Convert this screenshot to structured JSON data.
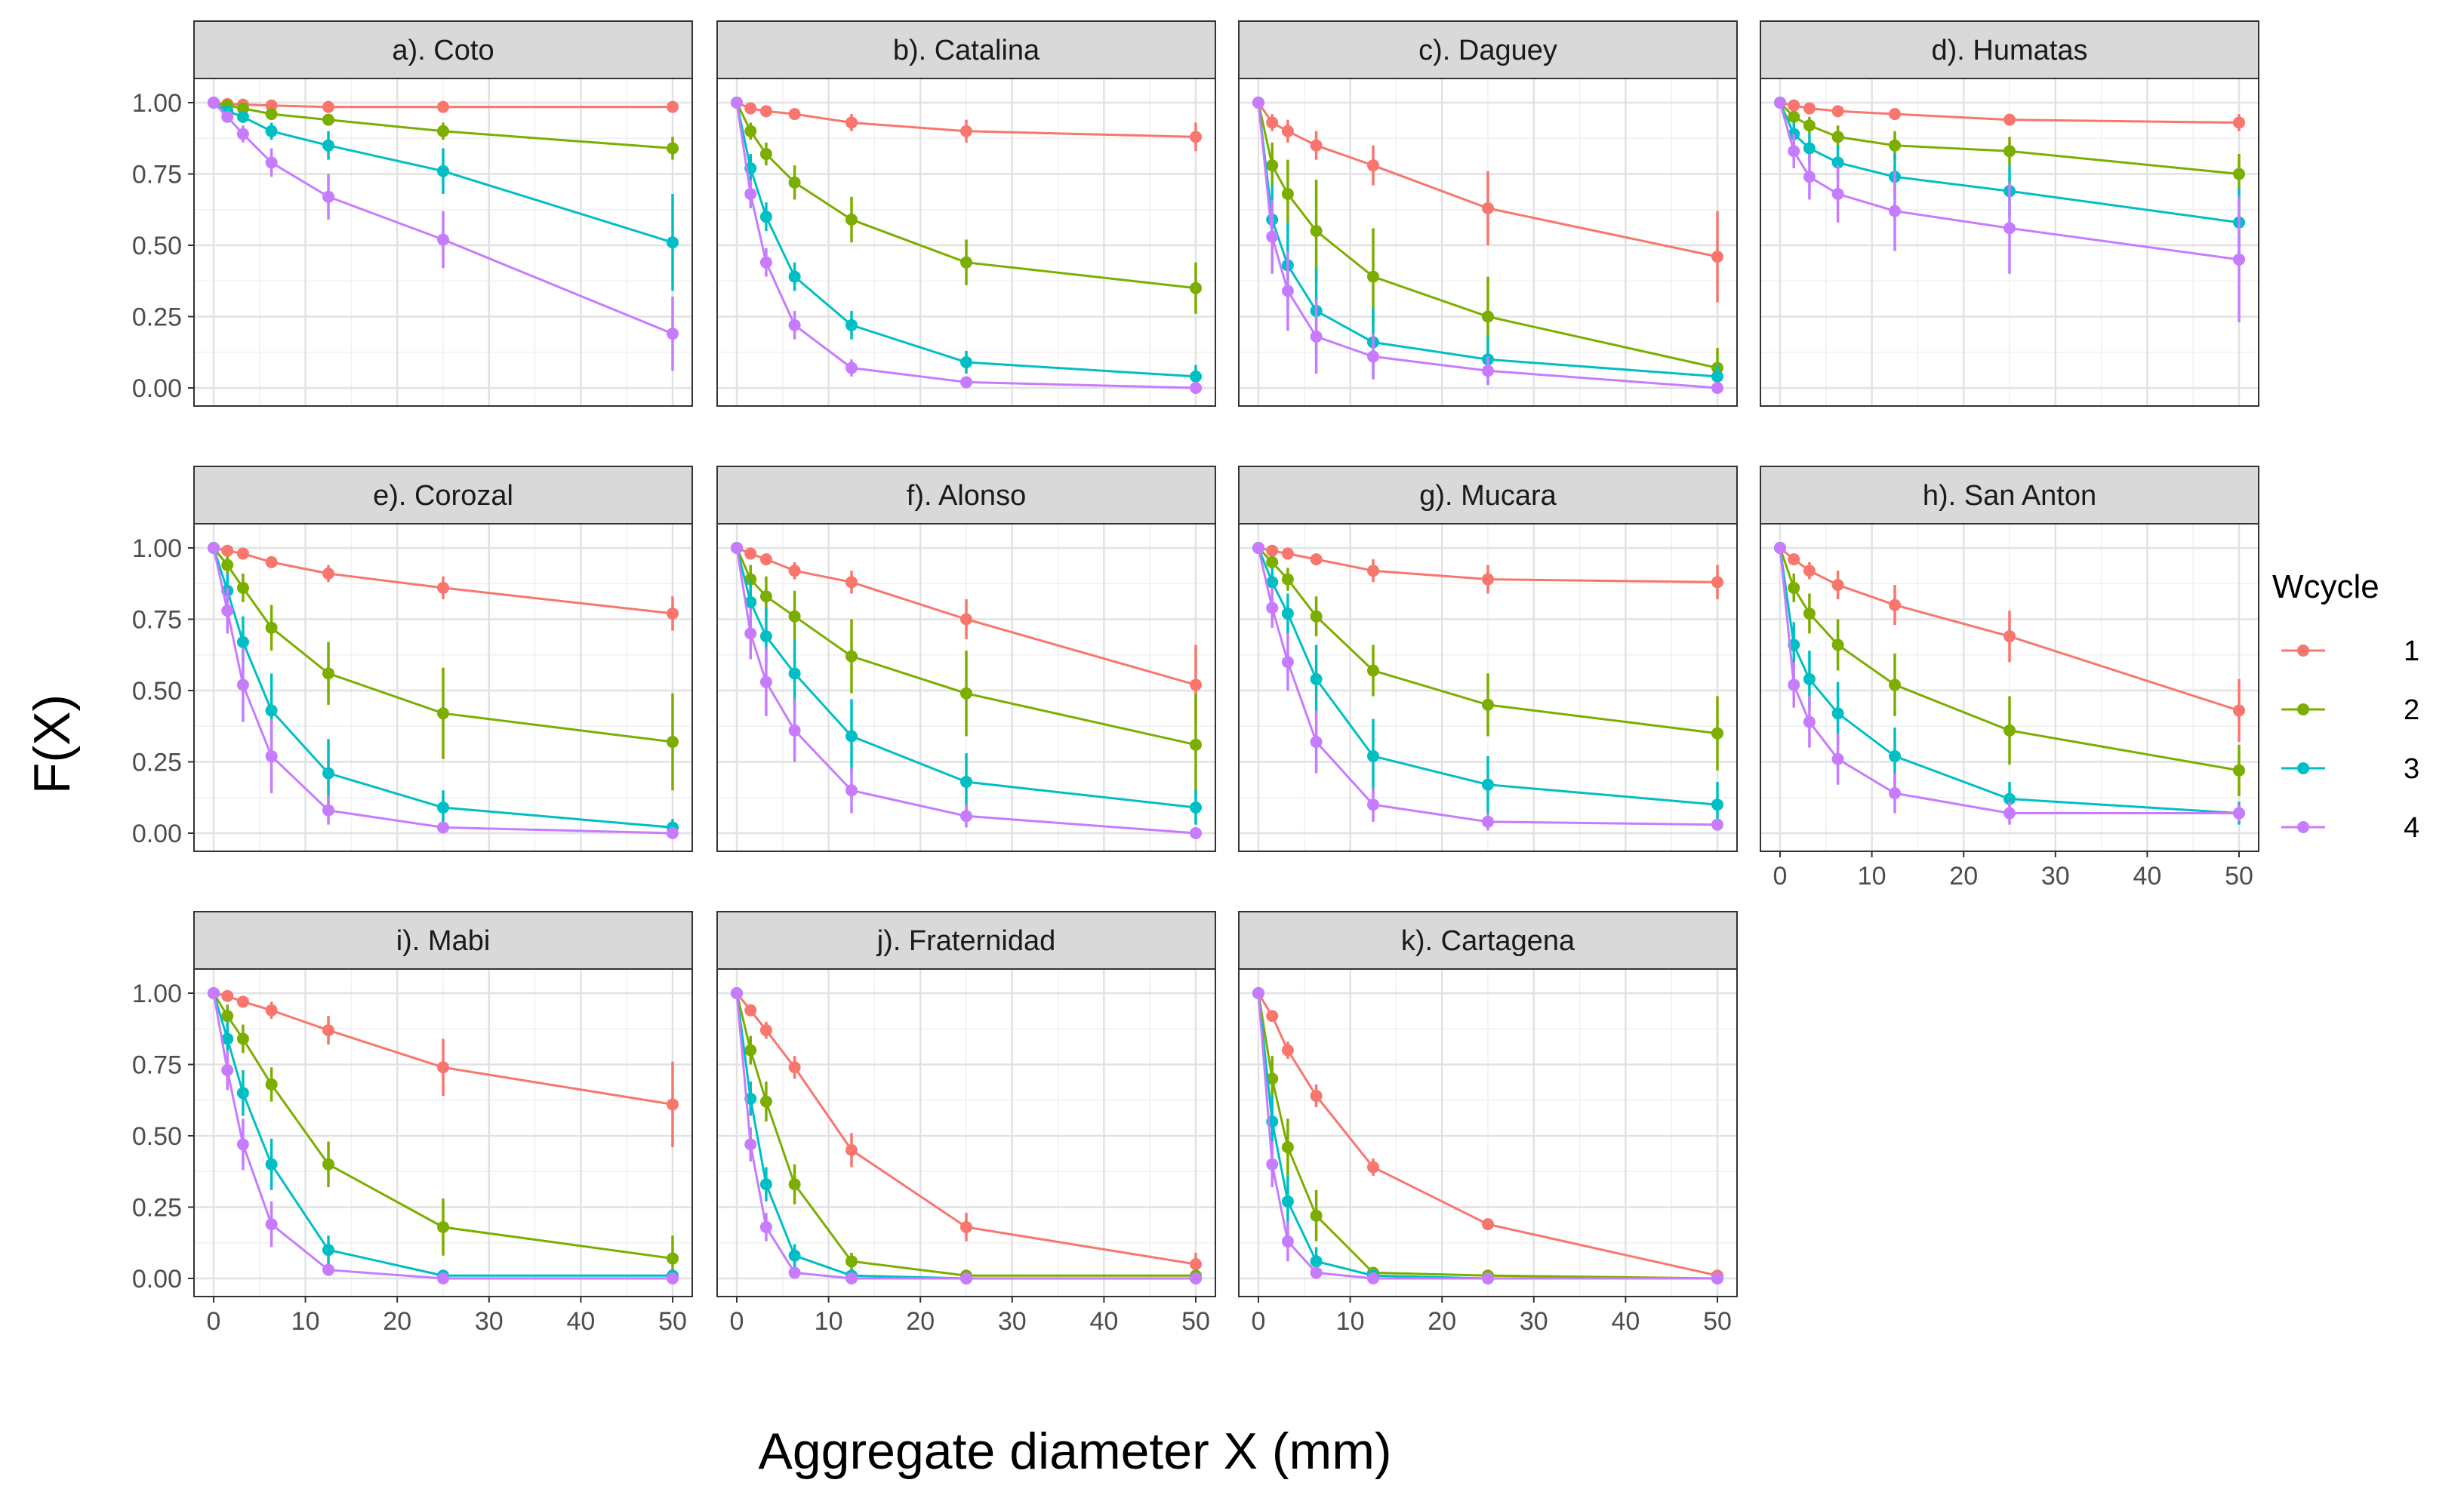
{
  "chart_data": {
    "type": "line",
    "xlabel": "Aggregate diameter X (mm)",
    "ylabel": "F(X)",
    "x_ticks": [
      "0",
      "10",
      "20",
      "30",
      "40",
      "50"
    ],
    "y_ticks": [
      "0.00",
      "0.25",
      "0.50",
      "0.75",
      "1.00"
    ],
    "xlim": [
      0,
      50
    ],
    "ylim": [
      0,
      1
    ],
    "grid": true,
    "legend": {
      "title": "Wcycle",
      "position": "right",
      "entries": [
        {
          "label": "1",
          "color": "#F8766D"
        },
        {
          "label": "2",
          "color": "#7CAE00"
        },
        {
          "label": "3",
          "color": "#00BFC4"
        },
        {
          "label": "4",
          "color": "#C77CFF"
        }
      ]
    },
    "x": [
      0,
      1.5,
      3.2,
      6.3,
      12.5,
      25,
      50
    ],
    "panels": [
      {
        "title": "a). Coto",
        "series": [
          {
            "name": "1",
            "values": [
              1.0,
              0.995,
              0.993,
              0.99,
              0.985,
              0.985,
              0.985
            ],
            "err": [
              0,
              0.005,
              0.005,
              0.01,
              0.01,
              0.01,
              0.01
            ]
          },
          {
            "name": "2",
            "values": [
              1.0,
              0.99,
              0.98,
              0.96,
              0.94,
              0.9,
              0.84
            ],
            "err": [
              0,
              0.01,
              0.01,
              0.015,
              0.02,
              0.03,
              0.04
            ]
          },
          {
            "name": "3",
            "values": [
              1.0,
              0.97,
              0.95,
              0.9,
              0.85,
              0.76,
              0.51
            ],
            "err": [
              0,
              0.02,
              0.02,
              0.03,
              0.05,
              0.08,
              0.17
            ]
          },
          {
            "name": "4",
            "values": [
              1.0,
              0.95,
              0.89,
              0.79,
              0.67,
              0.52,
              0.19
            ],
            "err": [
              0,
              0.02,
              0.03,
              0.05,
              0.08,
              0.1,
              0.13
            ]
          }
        ]
      },
      {
        "title": "b). Catalina",
        "series": [
          {
            "name": "1",
            "values": [
              1.0,
              0.98,
              0.97,
              0.96,
              0.93,
              0.9,
              0.88
            ],
            "err": [
              0,
              0.01,
              0.01,
              0.015,
              0.03,
              0.04,
              0.05
            ]
          },
          {
            "name": "2",
            "values": [
              1.0,
              0.9,
              0.82,
              0.72,
              0.59,
              0.44,
              0.35
            ],
            "err": [
              0,
              0.03,
              0.04,
              0.06,
              0.08,
              0.08,
              0.09
            ]
          },
          {
            "name": "3",
            "values": [
              1.0,
              0.77,
              0.6,
              0.39,
              0.22,
              0.09,
              0.04
            ],
            "err": [
              0,
              0.05,
              0.05,
              0.05,
              0.05,
              0.04,
              0.04
            ]
          },
          {
            "name": "4",
            "values": [
              1.0,
              0.68,
              0.44,
              0.22,
              0.07,
              0.02,
              0.0
            ],
            "err": [
              0,
              0.05,
              0.05,
              0.05,
              0.03,
              0.02,
              0.01
            ]
          }
        ]
      },
      {
        "title": "c). Daguey",
        "series": [
          {
            "name": "1",
            "values": [
              1.0,
              0.93,
              0.9,
              0.85,
              0.78,
              0.63,
              0.46
            ],
            "err": [
              0,
              0.03,
              0.04,
              0.05,
              0.07,
              0.13,
              0.16
            ]
          },
          {
            "name": "2",
            "values": [
              1.0,
              0.78,
              0.68,
              0.55,
              0.39,
              0.25,
              0.07
            ],
            "err": [
              0,
              0.08,
              0.12,
              0.18,
              0.17,
              0.14,
              0.07
            ]
          },
          {
            "name": "3",
            "values": [
              1.0,
              0.59,
              0.43,
              0.27,
              0.16,
              0.1,
              0.04
            ],
            "err": [
              0,
              0.12,
              0.15,
              0.15,
              0.12,
              0.08,
              0.04
            ]
          },
          {
            "name": "4",
            "values": [
              1.0,
              0.53,
              0.34,
              0.18,
              0.11,
              0.06,
              0.0
            ],
            "err": [
              0,
              0.13,
              0.14,
              0.13,
              0.08,
              0.05,
              0.01
            ]
          }
        ]
      },
      {
        "title": "d). Humatas",
        "series": [
          {
            "name": "1",
            "values": [
              1.0,
              0.99,
              0.98,
              0.97,
              0.96,
              0.94,
              0.93
            ],
            "err": [
              0,
              0.01,
              0.01,
              0.015,
              0.02,
              0.02,
              0.03
            ]
          },
          {
            "name": "2",
            "values": [
              1.0,
              0.95,
              0.92,
              0.88,
              0.85,
              0.83,
              0.75
            ],
            "err": [
              0,
              0.02,
              0.03,
              0.04,
              0.05,
              0.05,
              0.07
            ]
          },
          {
            "name": "3",
            "values": [
              1.0,
              0.89,
              0.84,
              0.79,
              0.74,
              0.69,
              0.58
            ],
            "err": [
              0,
              0.04,
              0.05,
              0.06,
              0.08,
              0.09,
              0.12
            ]
          },
          {
            "name": "4",
            "values": [
              1.0,
              0.83,
              0.74,
              0.68,
              0.62,
              0.56,
              0.45
            ],
            "err": [
              0,
              0.06,
              0.08,
              0.1,
              0.14,
              0.16,
              0.22
            ]
          }
        ]
      },
      {
        "title": "e). Corozal",
        "series": [
          {
            "name": "1",
            "values": [
              1.0,
              0.99,
              0.98,
              0.95,
              0.91,
              0.86,
              0.77
            ],
            "err": [
              0,
              0.005,
              0.01,
              0.02,
              0.03,
              0.04,
              0.06
            ]
          },
          {
            "name": "2",
            "values": [
              1.0,
              0.94,
              0.86,
              0.72,
              0.56,
              0.42,
              0.32
            ],
            "err": [
              0,
              0.03,
              0.05,
              0.08,
              0.11,
              0.16,
              0.17
            ]
          },
          {
            "name": "3",
            "values": [
              1.0,
              0.85,
              0.67,
              0.43,
              0.21,
              0.09,
              0.02
            ],
            "err": [
              0,
              0.06,
              0.09,
              0.13,
              0.12,
              0.06,
              0.03
            ]
          },
          {
            "name": "4",
            "values": [
              1.0,
              0.78,
              0.52,
              0.27,
              0.08,
              0.02,
              0.0
            ],
            "err": [
              0,
              0.08,
              0.13,
              0.13,
              0.05,
              0.02,
              0.01
            ]
          }
        ]
      },
      {
        "title": "f). Alonso",
        "series": [
          {
            "name": "1",
            "values": [
              1.0,
              0.98,
              0.96,
              0.92,
              0.88,
              0.75,
              0.52
            ],
            "err": [
              0,
              0.01,
              0.02,
              0.03,
              0.04,
              0.07,
              0.14
            ]
          },
          {
            "name": "2",
            "values": [
              1.0,
              0.89,
              0.83,
              0.76,
              0.62,
              0.49,
              0.31
            ],
            "err": [
              0,
              0.05,
              0.07,
              0.09,
              0.13,
              0.15,
              0.18
            ]
          },
          {
            "name": "3",
            "values": [
              1.0,
              0.81,
              0.69,
              0.56,
              0.34,
              0.18,
              0.09
            ],
            "err": [
              0,
              0.08,
              0.1,
              0.12,
              0.13,
              0.1,
              0.06
            ]
          },
          {
            "name": "4",
            "values": [
              1.0,
              0.7,
              0.53,
              0.36,
              0.15,
              0.06,
              0.0
            ],
            "err": [
              0,
              0.09,
              0.12,
              0.11,
              0.08,
              0.04,
              0.01
            ]
          }
        ]
      },
      {
        "title": "g). Mucara",
        "series": [
          {
            "name": "1",
            "values": [
              1.0,
              0.99,
              0.98,
              0.96,
              0.92,
              0.89,
              0.88
            ],
            "err": [
              0,
              0.01,
              0.01,
              0.02,
              0.04,
              0.05,
              0.06
            ]
          },
          {
            "name": "2",
            "values": [
              1.0,
              0.95,
              0.89,
              0.76,
              0.57,
              0.45,
              0.35
            ],
            "err": [
              0,
              0.02,
              0.04,
              0.07,
              0.09,
              0.11,
              0.13
            ]
          },
          {
            "name": "3",
            "values": [
              1.0,
              0.88,
              0.77,
              0.54,
              0.27,
              0.17,
              0.1
            ],
            "err": [
              0,
              0.05,
              0.07,
              0.12,
              0.13,
              0.1,
              0.08
            ]
          },
          {
            "name": "4",
            "values": [
              1.0,
              0.79,
              0.6,
              0.32,
              0.1,
              0.04,
              0.03
            ],
            "err": [
              0,
              0.07,
              0.1,
              0.11,
              0.06,
              0.03,
              0.02
            ]
          }
        ]
      },
      {
        "title": "h). San Anton",
        "series": [
          {
            "name": "1",
            "values": [
              1.0,
              0.96,
              0.92,
              0.87,
              0.8,
              0.69,
              0.43
            ],
            "err": [
              0,
              0.02,
              0.03,
              0.05,
              0.07,
              0.09,
              0.11
            ]
          },
          {
            "name": "2",
            "values": [
              1.0,
              0.86,
              0.77,
              0.66,
              0.52,
              0.36,
              0.22
            ],
            "err": [
              0,
              0.05,
              0.07,
              0.09,
              0.11,
              0.12,
              0.09
            ]
          },
          {
            "name": "3",
            "values": [
              1.0,
              0.66,
              0.54,
              0.42,
              0.27,
              0.12,
              0.07
            ],
            "err": [
              0,
              0.08,
              0.1,
              0.11,
              0.1,
              0.06,
              0.04
            ]
          },
          {
            "name": "4",
            "values": [
              1.0,
              0.52,
              0.39,
              0.26,
              0.14,
              0.07,
              0.07
            ],
            "err": [
              0,
              0.08,
              0.09,
              0.09,
              0.07,
              0.04,
              0.03
            ]
          }
        ]
      },
      {
        "title": "i). Mabi",
        "series": [
          {
            "name": "1",
            "values": [
              1.0,
              0.99,
              0.97,
              0.94,
              0.87,
              0.74,
              0.61
            ],
            "err": [
              0,
              0.01,
              0.02,
              0.03,
              0.05,
              0.1,
              0.15
            ]
          },
          {
            "name": "2",
            "values": [
              1.0,
              0.92,
              0.84,
              0.68,
              0.4,
              0.18,
              0.07
            ],
            "err": [
              0,
              0.04,
              0.05,
              0.06,
              0.08,
              0.1,
              0.08
            ]
          },
          {
            "name": "3",
            "values": [
              1.0,
              0.84,
              0.65,
              0.4,
              0.1,
              0.01,
              0.01
            ],
            "err": [
              0,
              0.06,
              0.08,
              0.09,
              0.05,
              0.01,
              0.0
            ]
          },
          {
            "name": "4",
            "values": [
              1.0,
              0.73,
              0.47,
              0.19,
              0.03,
              0.0,
              0.0
            ],
            "err": [
              0,
              0.07,
              0.09,
              0.08,
              0.02,
              0.0,
              0.0
            ]
          }
        ]
      },
      {
        "title": "j). Fraternidad",
        "series": [
          {
            "name": "1",
            "values": [
              1.0,
              0.94,
              0.87,
              0.74,
              0.45,
              0.18,
              0.05
            ],
            "err": [
              0,
              0.02,
              0.03,
              0.04,
              0.06,
              0.05,
              0.04
            ]
          },
          {
            "name": "2",
            "values": [
              1.0,
              0.8,
              0.62,
              0.33,
              0.06,
              0.01,
              0.01
            ],
            "err": [
              0,
              0.05,
              0.07,
              0.07,
              0.03,
              0.01,
              0.0
            ]
          },
          {
            "name": "3",
            "values": [
              1.0,
              0.63,
              0.33,
              0.08,
              0.01,
              0.0,
              0.0
            ],
            "err": [
              0,
              0.06,
              0.06,
              0.04,
              0.01,
              0.0,
              0.0
            ]
          },
          {
            "name": "4",
            "values": [
              1.0,
              0.47,
              0.18,
              0.02,
              0.0,
              0.0,
              0.0
            ],
            "err": [
              0,
              0.06,
              0.05,
              0.02,
              0.0,
              0.0,
              0.0
            ]
          }
        ]
      },
      {
        "title": "k). Cartagena",
        "series": [
          {
            "name": "1",
            "values": [
              1.0,
              0.92,
              0.8,
              0.64,
              0.39,
              0.19,
              0.01
            ],
            "err": [
              0,
              0.02,
              0.03,
              0.04,
              0.03,
              0.02,
              0.01
            ]
          },
          {
            "name": "2",
            "values": [
              1.0,
              0.7,
              0.46,
              0.22,
              0.02,
              0.01,
              0.0
            ],
            "err": [
              0,
              0.08,
              0.1,
              0.09,
              0.02,
              0.0,
              0.0
            ]
          },
          {
            "name": "3",
            "values": [
              1.0,
              0.55,
              0.27,
              0.06,
              0.01,
              0.0,
              0.0
            ],
            "err": [
              0,
              0.09,
              0.09,
              0.05,
              0.01,
              0.0,
              0.0
            ]
          },
          {
            "name": "4",
            "values": [
              1.0,
              0.4,
              0.13,
              0.02,
              0.0,
              0.0,
              0.0
            ],
            "err": [
              0,
              0.08,
              0.07,
              0.02,
              0.0,
              0.0,
              0.0
            ]
          }
        ]
      }
    ]
  }
}
